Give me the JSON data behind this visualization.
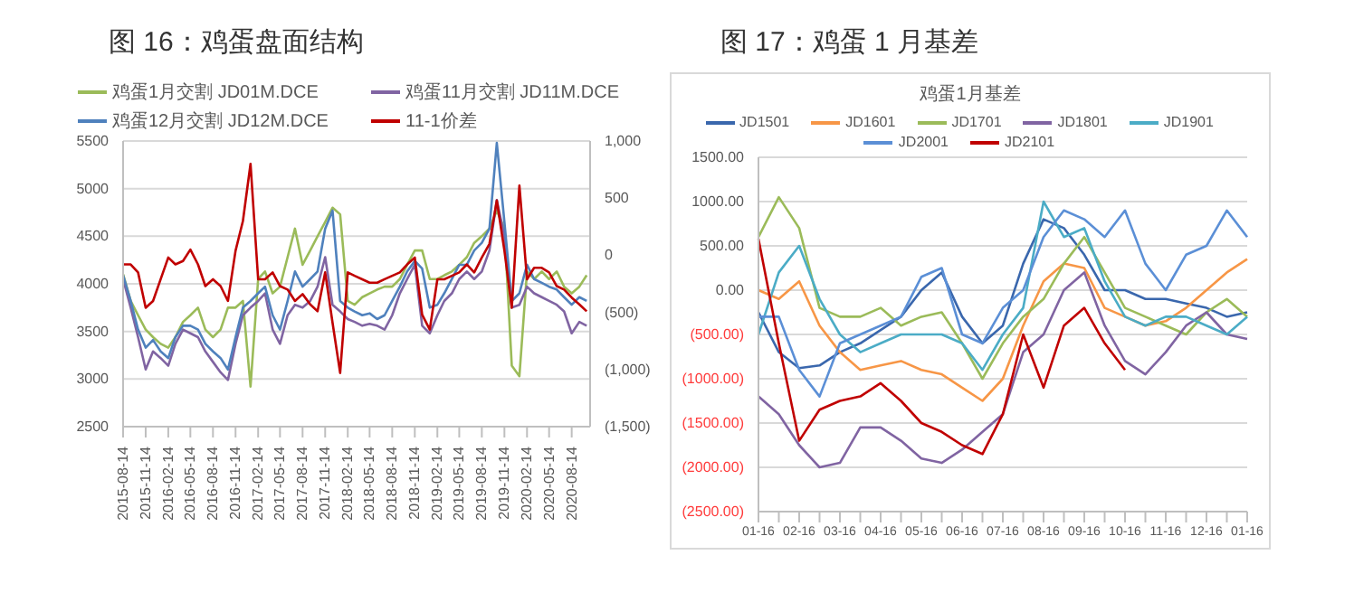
{
  "chart_data": [
    {
      "type": "line",
      "title": "图 16：鸡蛋盘面结构",
      "legend": "top",
      "grid": "y",
      "marker": "none",
      "line_style": "solid",
      "x": [
        "2015-08-14",
        "2015-09-14",
        "2015-10-14",
        "2015-11-14",
        "2015-12-14",
        "2016-01-14",
        "2016-02-14",
        "2016-03-14",
        "2016-04-14",
        "2016-05-14",
        "2016-06-14",
        "2016-07-14",
        "2016-08-14",
        "2016-09-14",
        "2016-10-14",
        "2016-11-14",
        "2016-12-14",
        "2017-01-14",
        "2017-02-14",
        "2017-03-14",
        "2017-04-14",
        "2017-05-14",
        "2017-06-14",
        "2017-07-14",
        "2017-08-14",
        "2017-09-14",
        "2017-10-14",
        "2017-11-14",
        "2017-12-14",
        "2018-01-14",
        "2018-02-14",
        "2018-03-14",
        "2018-04-14",
        "2018-05-14",
        "2018-06-14",
        "2018-07-14",
        "2018-08-14",
        "2018-09-14",
        "2018-10-14",
        "2018-11-14",
        "2018-12-14",
        "2019-01-14",
        "2019-02-14",
        "2019-03-14",
        "2019-04-14",
        "2019-05-14",
        "2019-06-14",
        "2019-07-14",
        "2019-08-14",
        "2019-09-14",
        "2019-10-14",
        "2019-11-14",
        "2019-12-14",
        "2020-01-14",
        "2020-02-14",
        "2020-03-14",
        "2020-04-14",
        "2020-05-14",
        "2020-06-14",
        "2020-07-14",
        "2020-08-14",
        "2020-09-14",
        "2020-10-14"
      ],
      "xlim": [
        "2015-08-14",
        "2020-10-28"
      ],
      "xticks": [
        "2015-08-14",
        "2015-11-14",
        "2016-02-14",
        "2016-05-14",
        "2016-08-14",
        "2016-11-14",
        "2017-02-14",
        "2017-05-14",
        "2017-08-14",
        "2017-11-14",
        "2018-02-14",
        "2018-05-14",
        "2018-08-14",
        "2018-11-14",
        "2019-02-14",
        "2019-05-14",
        "2019-08-14",
        "2019-11-14",
        "2020-02-14",
        "2020-05-14",
        "2020-08-14"
      ],
      "ylim": [
        2500,
        5500
      ],
      "yticks": [
        2500,
        3000,
        3500,
        4000,
        4500,
        5000,
        5500
      ],
      "y2lim": [
        -1500,
        1000
      ],
      "y2ticks": [
        {
          "value": -1500,
          "label": "(1,500)"
        },
        {
          "value": -1000,
          "label": "(1,000)"
        },
        {
          "value": -500,
          "label": "(500)"
        },
        0,
        500,
        {
          "value": 1000,
          "label": "1,000"
        }
      ],
      "series": [
        {
          "name": "鸡蛋1月交割 JD01M.DCE",
          "color": "#9bbb59",
          "values": [
            4100,
            3820,
            3670,
            3520,
            3440,
            3370,
            3330,
            3440,
            3600,
            3670,
            3750,
            3520,
            3440,
            3520,
            3750,
            3750,
            3820,
            2920,
            4050,
            4130,
            3900,
            3970,
            4280,
            4580,
            4200,
            4350,
            4500,
            4650,
            4800,
            4730,
            3820,
            3780,
            3860,
            3900,
            3940,
            3970,
            3970,
            4050,
            4200,
            4350,
            4350,
            4050,
            4050,
            4090,
            4130,
            4200,
            4280,
            4430,
            4500,
            4580,
            4770,
            4580,
            3140,
            3030,
            4130,
            4050,
            4130,
            4050,
            4130,
            3970,
            3900,
            3970,
            4090
          ]
        },
        {
          "name": "鸡蛋11月交割 JD11M.DCE",
          "color": "#8064a2",
          "values": [
            4050,
            3750,
            3440,
            3100,
            3290,
            3220,
            3140,
            3370,
            3520,
            3480,
            3440,
            3290,
            3180,
            3070,
            2990,
            3370,
            3670,
            3750,
            3820,
            3900,
            3520,
            3370,
            3670,
            3780,
            3750,
            3820,
            3970,
            4280,
            3780,
            3710,
            3630,
            3600,
            3560,
            3580,
            3560,
            3520,
            3670,
            3900,
            4050,
            4200,
            3560,
            3480,
            3670,
            3820,
            3900,
            4050,
            4130,
            4050,
            4130,
            4350,
            4880,
            4500,
            3750,
            3780,
            3970,
            3900,
            3860,
            3820,
            3780,
            3710,
            3480,
            3600,
            3560
          ]
        },
        {
          "name": "鸡蛋12月交割 JD12M.DCE",
          "color": "#4f81bd",
          "values": [
            4090,
            3820,
            3520,
            3330,
            3410,
            3290,
            3220,
            3440,
            3560,
            3560,
            3520,
            3370,
            3290,
            3220,
            3100,
            3440,
            3750,
            3820,
            3900,
            3970,
            3670,
            3520,
            3820,
            4130,
            3970,
            4050,
            4130,
            4580,
            4770,
            3820,
            3750,
            3710,
            3670,
            3690,
            3630,
            3670,
            3820,
            3970,
            4130,
            4240,
            4160,
            3750,
            3780,
            3900,
            4050,
            4200,
            4200,
            4350,
            4430,
            4580,
            5480,
            4650,
            3820,
            3900,
            4200,
            4050,
            4010,
            3970,
            3940,
            3860,
            3780,
            3860,
            3820
          ]
        },
        {
          "name": "11-1价差",
          "color": "#c00000",
          "axis": "y2",
          "values": [
            -80,
            -80,
            -150,
            -460,
            -400,
            -210,
            -20,
            -80,
            -50,
            50,
            -80,
            -270,
            -210,
            -270,
            -400,
            40,
            300,
            800,
            -210,
            -210,
            -150,
            -270,
            -300,
            -400,
            -340,
            -430,
            -490,
            -150,
            -590,
            -1030,
            -150,
            -180,
            -210,
            -240,
            -240,
            -210,
            -180,
            -150,
            -80,
            -20,
            -520,
            -650,
            -210,
            -210,
            -180,
            -150,
            -80,
            -150,
            -20,
            100,
            480,
            40,
            -460,
            610,
            -210,
            -110,
            -110,
            -150,
            -270,
            -300,
            -370,
            -430,
            -490
          ]
        }
      ]
    },
    {
      "type": "line",
      "title": "图 17：鸡蛋 1 月基差",
      "subtitle": "鸡蛋1月基差",
      "legend": "top",
      "grid": "y",
      "marker": "none",
      "line_style": "solid",
      "categories": [
        "01-16",
        null,
        "02-16",
        null,
        "03-16",
        null,
        "04-16",
        null,
        "05-16",
        null,
        "06-16",
        null,
        "07-16",
        null,
        "08-16",
        null,
        "09-16",
        null,
        "10-16",
        null,
        "11-16",
        null,
        "12-16",
        null,
        "01-16"
      ],
      "ylim": [
        -2500,
        1500
      ],
      "yticks": [
        {
          "value": -2500,
          "label": "(2500.00)"
        },
        {
          "value": -2000,
          "label": "(2000.00)"
        },
        {
          "value": -1500,
          "label": "(1500.00)"
        },
        {
          "value": -1000,
          "label": "(1000.00)"
        },
        {
          "value": -500,
          "label": "(500.00)"
        },
        {
          "value": 0,
          "label": "0.00"
        },
        {
          "value": 500,
          "label": "500.00"
        },
        {
          "value": 1000,
          "label": "1000.00"
        },
        {
          "value": 1500,
          "label": "1500.00"
        }
      ],
      "series": [
        {
          "name": "JD1501",
          "color": "#3a67ad",
          "values": [
            -250,
            -700,
            -880,
            -850,
            -700,
            -600,
            -450,
            -300,
            0,
            200,
            -300,
            -600,
            -400,
            300,
            800,
            700,
            400,
            0,
            0,
            -100,
            -100,
            -150,
            -200,
            -300,
            -250
          ]
        },
        {
          "name": "JD1601",
          "color": "#f79646",
          "values": [
            0,
            -100,
            100,
            -400,
            -700,
            -900,
            -850,
            -800,
            -900,
            -950,
            -1100,
            -1250,
            -1000,
            -400,
            100,
            300,
            250,
            -200,
            -300,
            -400,
            -350,
            -200,
            0,
            200,
            350
          ]
        },
        {
          "name": "JD1701",
          "color": "#9bbb59",
          "values": [
            600,
            1050,
            700,
            -200,
            -300,
            -300,
            -200,
            -400,
            -300,
            -250,
            -600,
            -1000,
            -600,
            -300,
            -100,
            300,
            600,
            200,
            -200,
            -300,
            -400,
            -500,
            -250,
            -100,
            -300
          ]
        },
        {
          "name": "JD1801",
          "color": "#8064a2",
          "values": [
            -1200,
            -1400,
            -1750,
            -2000,
            -1950,
            -1550,
            -1550,
            -1700,
            -1900,
            -1950,
            -1800,
            -1600,
            -1400,
            -700,
            -500,
            0,
            200,
            -400,
            -800,
            -950,
            -700,
            -400,
            -250,
            -500,
            -550
          ]
        },
        {
          "name": "JD1901",
          "color": "#4bacc6",
          "values": [
            -500,
            200,
            500,
            -100,
            -500,
            -700,
            -600,
            -500,
            -500,
            -500,
            -600,
            -900,
            -500,
            -200,
            1000,
            600,
            700,
            100,
            -300,
            -400,
            -300,
            -300,
            -400,
            -500,
            -300
          ]
        },
        {
          "name": "JD2001",
          "color": "#5b8fd6",
          "values": [
            -300,
            -300,
            -900,
            -1200,
            -600,
            -500,
            -400,
            -300,
            150,
            250,
            -500,
            -600,
            -200,
            0,
            600,
            900,
            800,
            600,
            900,
            300,
            0,
            400,
            500,
            900,
            600
          ]
        },
        {
          "name": "JD2101",
          "color": "#c00000",
          "values": [
            580,
            -600,
            -1700,
            -1350,
            -1250,
            -1200,
            -1050,
            -1250,
            -1500,
            -1600,
            -1750,
            -1850,
            -1400,
            -500,
            -1100,
            -400,
            -200,
            -600,
            -900,
            null,
            null,
            null,
            null,
            null,
            null
          ]
        }
      ]
    }
  ]
}
